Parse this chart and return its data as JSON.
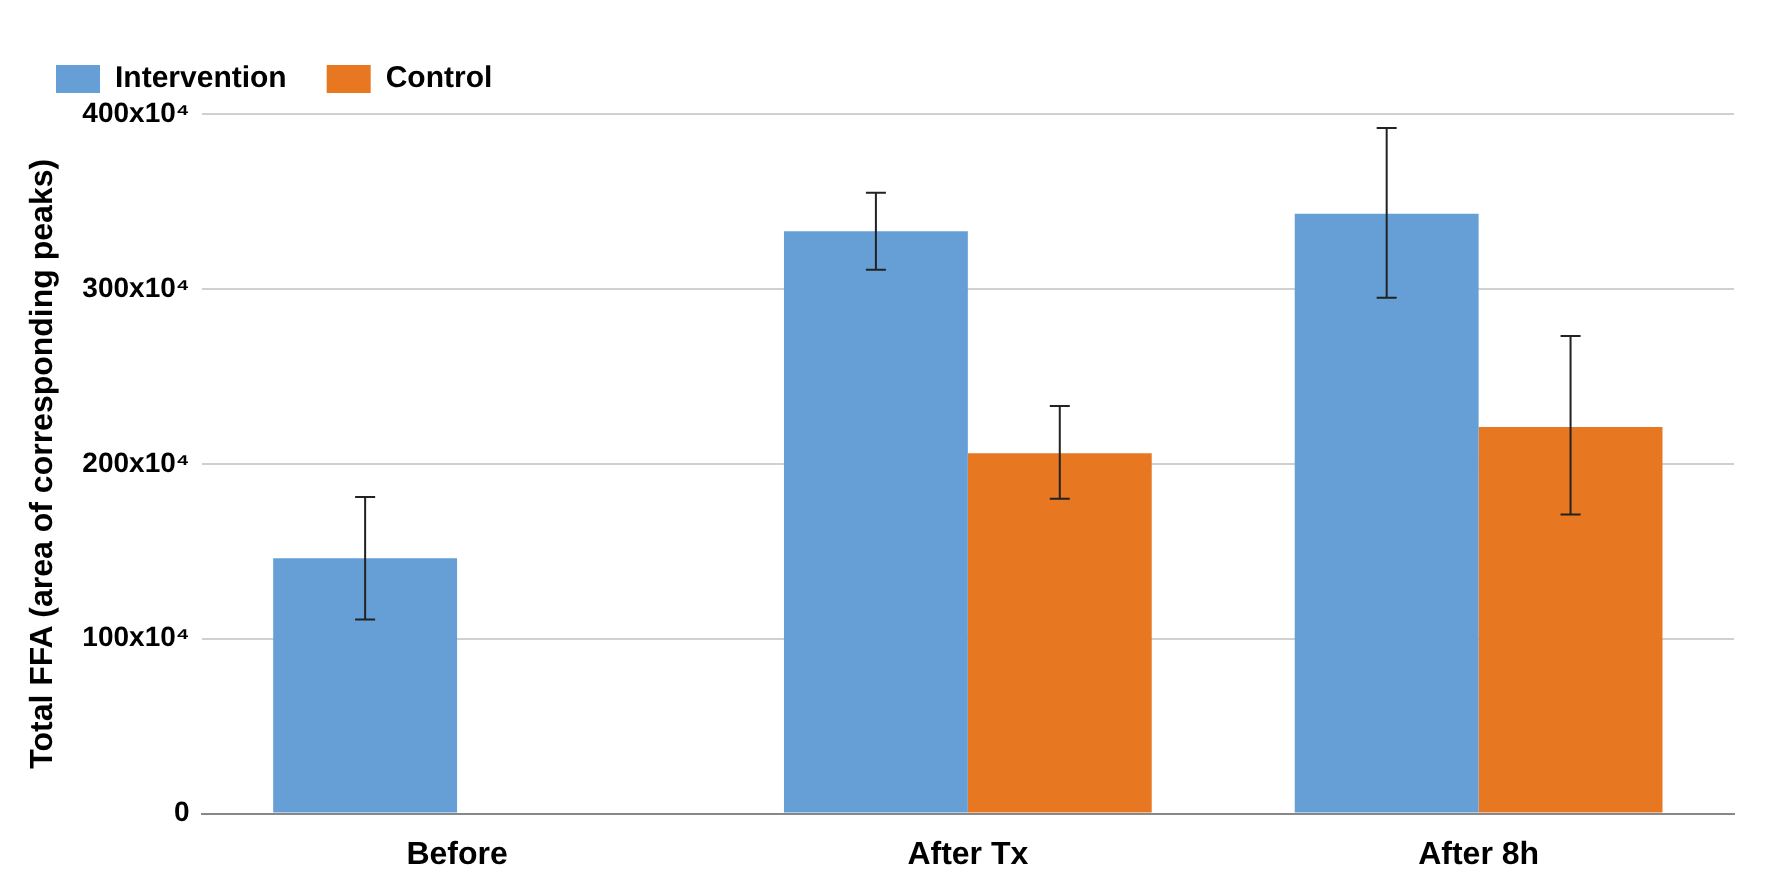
{
  "chart_data": {
    "type": "bar",
    "ylabel": "Total FFA (area of corresponding peaks)",
    "categories": [
      "Before",
      "After Tx",
      "After 8h"
    ],
    "series": [
      {
        "name": "Intervention",
        "color": "#659fd6",
        "values": [
          1460000,
          3330000,
          3430000
        ],
        "errors": [
          [
            1110000,
            1810000
          ],
          [
            3110000,
            3550000
          ],
          [
            2950000,
            3920000
          ]
        ]
      },
      {
        "name": "Control",
        "color": "#e87722",
        "values": [
          null,
          2060000,
          2210000
        ],
        "errors": [
          null,
          [
            1800000,
            2330000
          ],
          [
            1710000,
            2730000
          ]
        ]
      }
    ],
    "ylim": [
      0,
      4000000
    ],
    "yticks": [
      0,
      {
        "value": 1000000,
        "label": "100x10⁴"
      },
      {
        "value": 2000000,
        "label": "200x10⁴"
      },
      {
        "value": 3000000,
        "label": "300x10⁴"
      },
      {
        "value": 4000000,
        "label": "400x10⁴"
      }
    ],
    "grid": "y",
    "legend": "top left"
  }
}
